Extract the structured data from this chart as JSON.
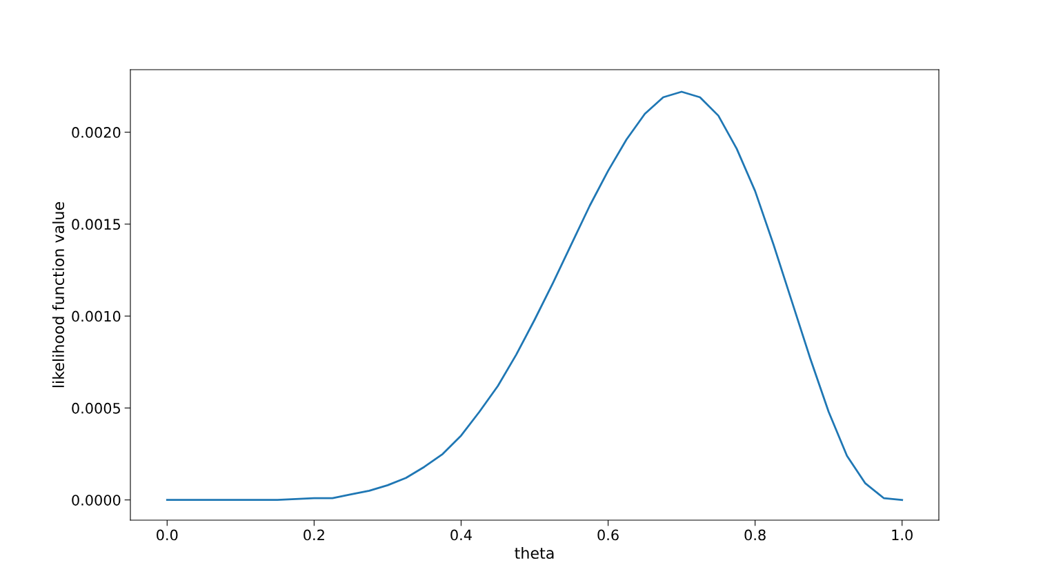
{
  "chart_data": {
    "type": "line",
    "xlabel": "theta",
    "ylabel": "likelihood function value",
    "x": [
      0,
      0.05,
      0.1,
      0.15,
      0.2,
      0.225,
      0.25,
      0.275,
      0.3,
      0.325,
      0.35,
      0.375,
      0.4,
      0.425,
      0.45,
      0.475,
      0.5,
      0.525,
      0.55,
      0.575,
      0.6,
      0.625,
      0.65,
      0.675,
      0.7,
      0.725,
      0.75,
      0.775,
      0.8,
      0.825,
      0.85,
      0.875,
      0.9,
      0.925,
      0.95,
      0.975,
      1.0
    ],
    "series": [
      {
        "color": "#1f77b4",
        "values": [
          0,
          0,
          0,
          0,
          1e-05,
          1e-05,
          3e-05,
          5e-05,
          8e-05,
          0.00012,
          0.00018,
          0.00025,
          0.00035,
          0.00048,
          0.00062,
          0.00079,
          0.00098,
          0.00118,
          0.00139,
          0.0016,
          0.00179,
          0.00196,
          0.0021,
          0.00219,
          0.00222,
          0.00219,
          0.00209,
          0.00191,
          0.00168,
          0.00139,
          0.00108,
          0.00077,
          0.00048,
          0.00024,
          9e-05,
          1e-05,
          0
        ]
      }
    ],
    "xlim": [
      -0.05,
      1.05
    ],
    "xticks": [
      {
        "value": 0,
        "label": "0.0"
      },
      {
        "value": 0.2,
        "label": "0.2"
      },
      {
        "value": 0.4,
        "label": "0.4"
      },
      {
        "value": 0.6,
        "label": "0.6"
      },
      {
        "value": 0.8,
        "label": "0.8"
      },
      {
        "value": 1.0,
        "label": "1.0"
      }
    ],
    "ylim": [
      -0.00011,
      0.00234
    ],
    "yticks": [
      {
        "value": 0,
        "label": "0.0000"
      },
      {
        "value": 0.0005,
        "label": "0.0005"
      },
      {
        "value": 0.001,
        "label": "0.0010"
      },
      {
        "value": 0.0015,
        "label": "0.0015"
      },
      {
        "value": 0.002,
        "label": "0.0020"
      }
    ],
    "grid": false,
    "legend": false,
    "marker": "none",
    "line_style": "solid"
  }
}
